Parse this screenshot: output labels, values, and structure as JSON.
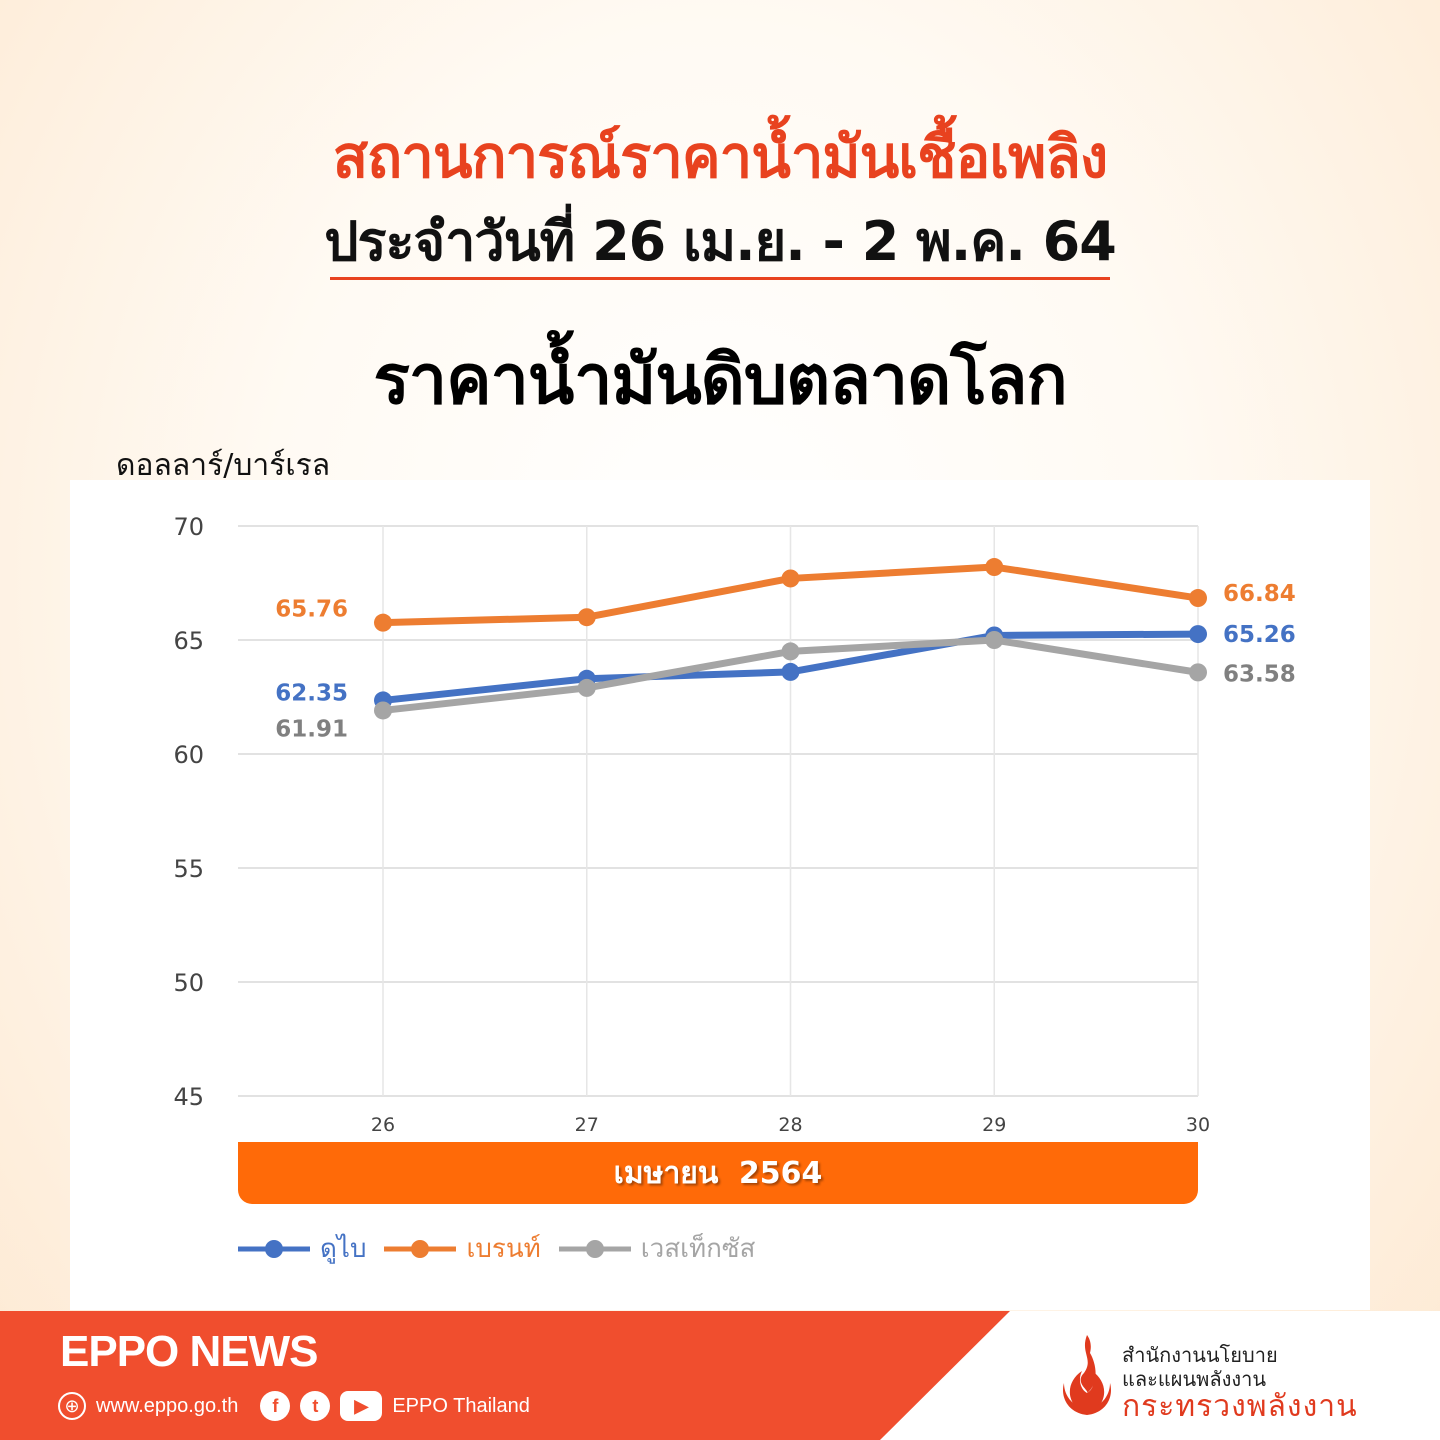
{
  "header": {
    "title": "สถานการณ์ราคาน้ำมันเชื้อเพลิง",
    "date_range": "ประจำวันที่ 26 เม.ย. - 2 พ.ค. 64",
    "subtitle": "ราคาน้ำมันดิบตลาดโลก"
  },
  "colors": {
    "accent": "#e8421f",
    "dubai": "#4472c4",
    "brent": "#ed7d31",
    "wti": "#a5a5a5",
    "month_bar": "#ff6a08",
    "footer": "#f04e2e"
  },
  "chart_data": {
    "type": "line",
    "title": "ราคาน้ำมันดิบตลาดโลก",
    "ylabel": "ดอลลาร์/บาร์เรล",
    "xlabel": "เมษายน 2564",
    "categories": [
      "26",
      "27",
      "28",
      "29",
      "30"
    ],
    "yticks": [
      70,
      65,
      60,
      55,
      50,
      45
    ],
    "ylim": [
      45,
      70
    ],
    "grid": true,
    "legend_position": "bottom",
    "series": [
      {
        "name": "ดูไบ",
        "color": "#4472c4",
        "values": [
          62.35,
          63.3,
          63.6,
          65.2,
          65.26
        ],
        "labels": [
          "62.35",
          "",
          "",
          "",
          "65.26"
        ]
      },
      {
        "name": "เบรนท์",
        "color": "#ed7d31",
        "values": [
          65.76,
          66.0,
          67.7,
          68.2,
          66.84
        ],
        "labels": [
          "65.76",
          "",
          "",
          "",
          "66.84"
        ]
      },
      {
        "name": "เวสเท็กซัส",
        "color": "#a5a5a5",
        "values": [
          61.91,
          62.9,
          64.5,
          65.0,
          63.58
        ],
        "labels": [
          "61.91",
          "",
          "",
          "",
          "63.58"
        ]
      }
    ]
  },
  "month_label": "เมษายน  2564",
  "footer": {
    "brand": "EPPO NEWS",
    "website": "www.eppo.go.th",
    "social_name": "EPPO Thailand",
    "org_line1": "สำนักงานนโยบาย",
    "org_line2": "และแผนพลังงาน",
    "ministry": "กระทรวงพลังงาน"
  }
}
